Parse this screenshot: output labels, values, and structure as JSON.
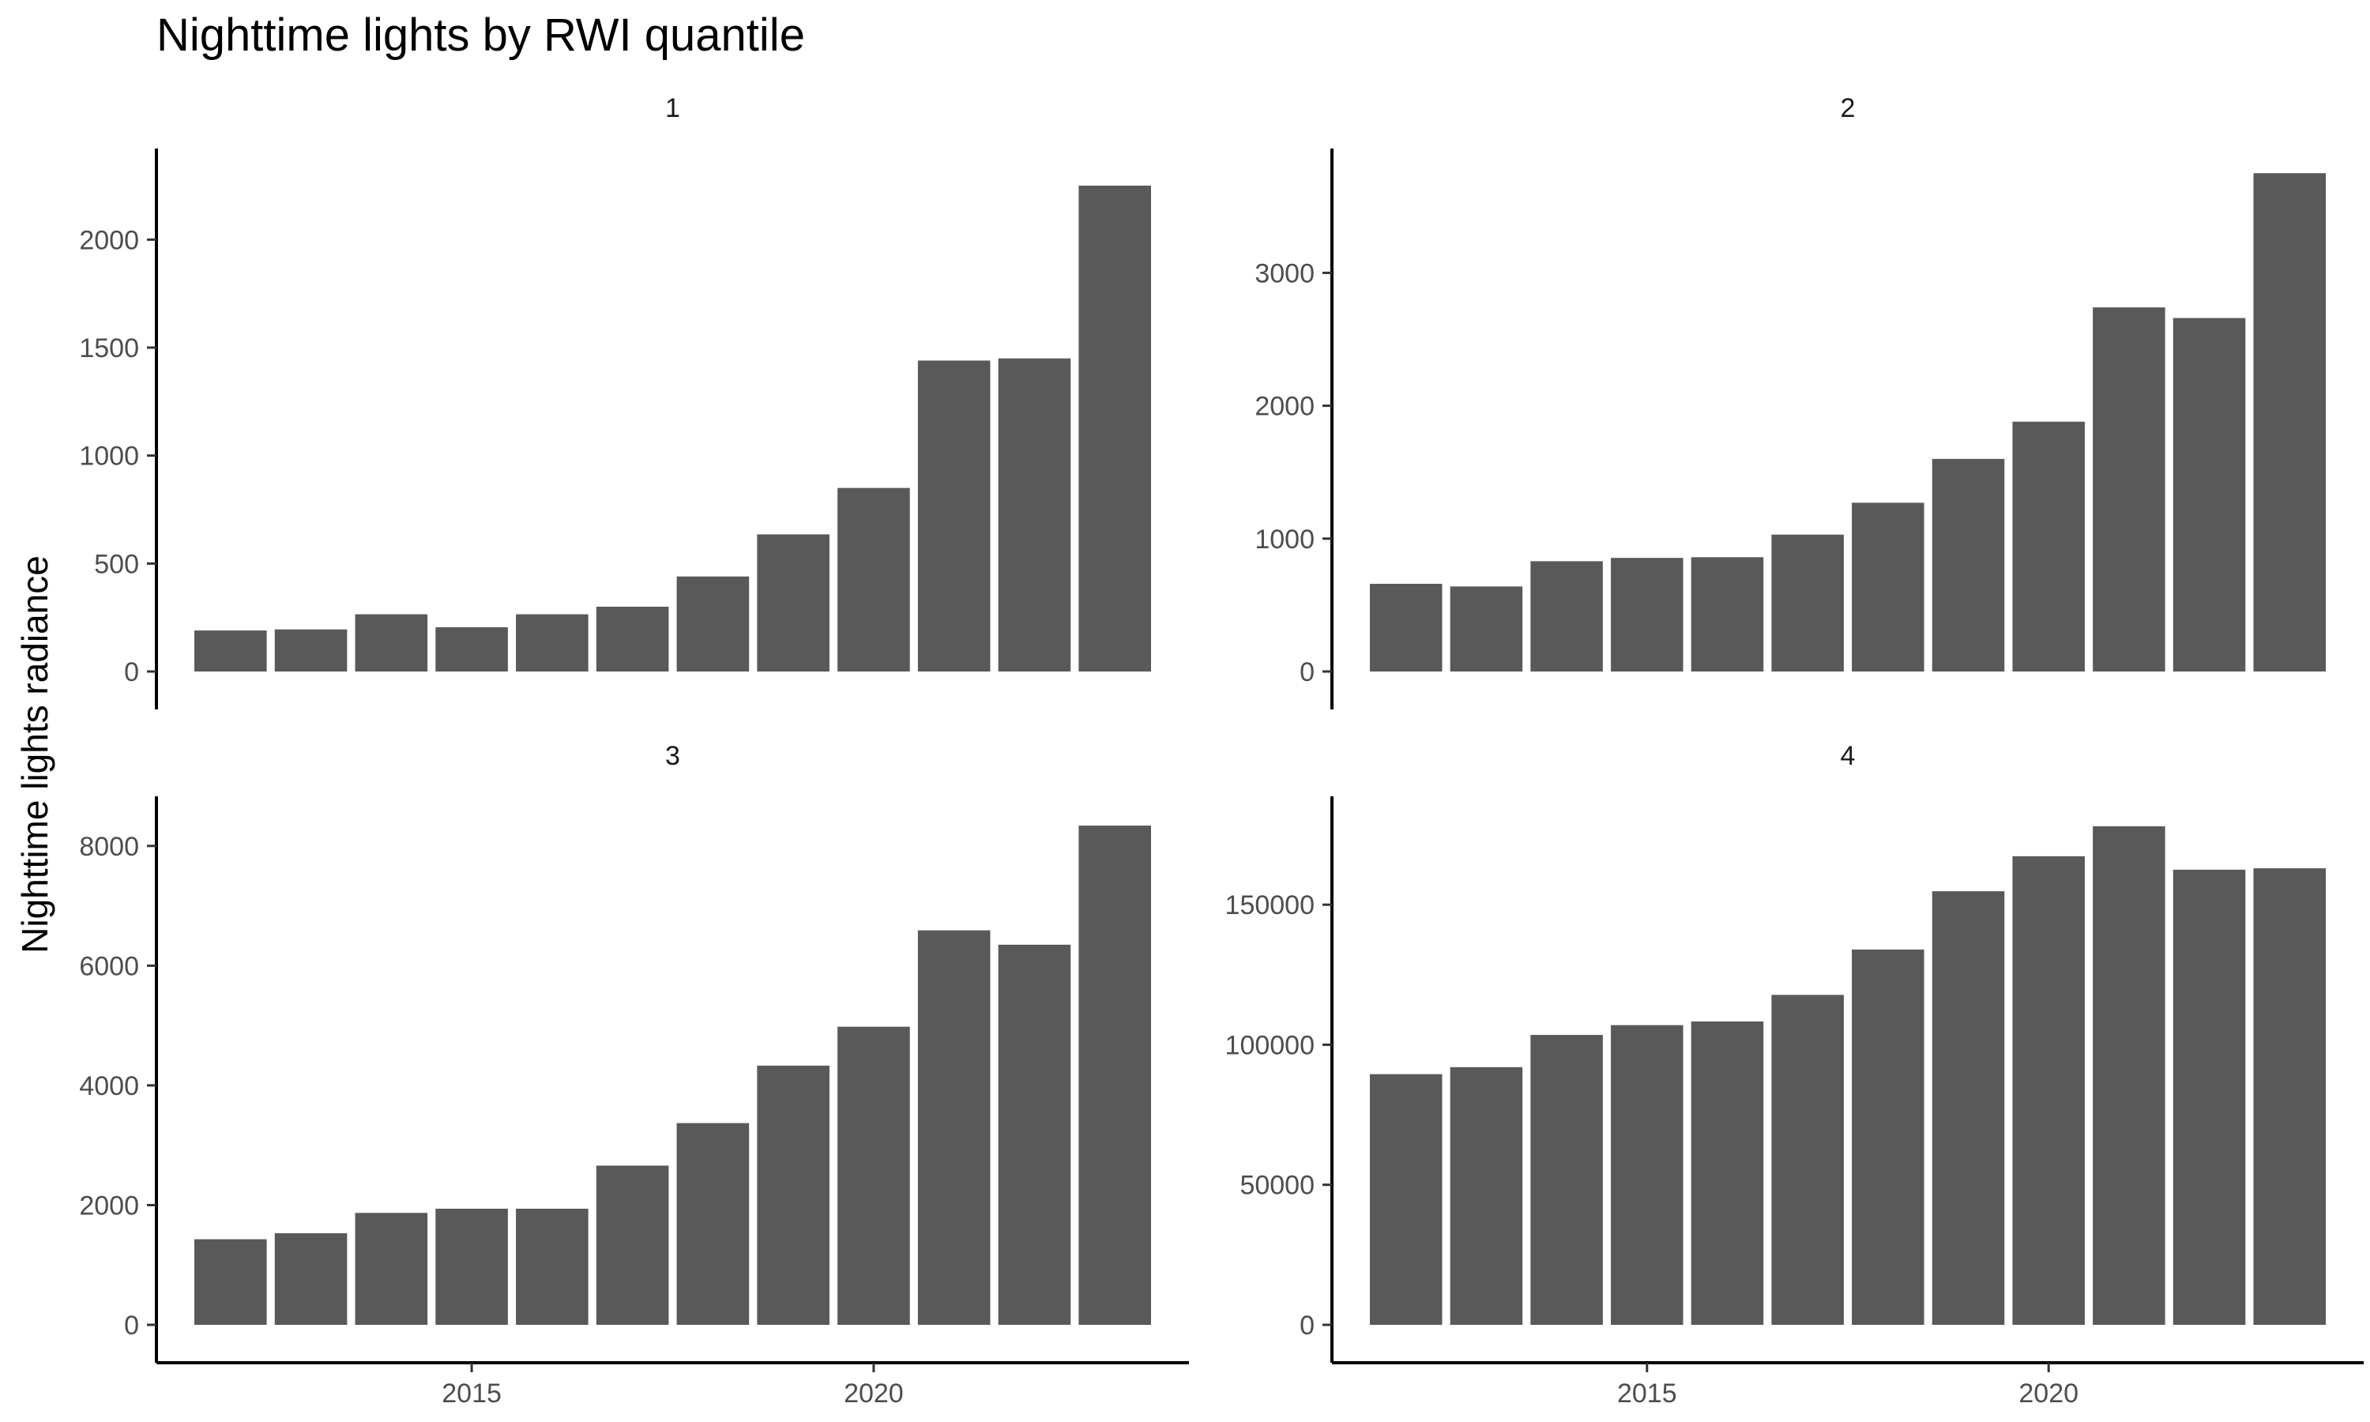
{
  "colors": {
    "bar": "#595959",
    "axis": "#000000",
    "tick_text": "#4d4d4d",
    "background": "#ffffff"
  },
  "chart_data": {
    "type": "bar",
    "layout": "facet grid 2x2",
    "title": "Nighttime lights by RWI quantile",
    "ylabel": "Nighttime lights radiance",
    "xlabel": "",
    "x": [
      2012,
      2013,
      2014,
      2015,
      2016,
      2017,
      2018,
      2019,
      2020,
      2021,
      2022,
      2023
    ],
    "x_ticks": [
      2015,
      2020
    ],
    "x_tick_labels": [
      "2015",
      "2020"
    ],
    "grid": false,
    "panels": [
      {
        "facet": "1",
        "values": [
          190,
          195,
          265,
          205,
          265,
          300,
          440,
          635,
          850,
          1440,
          1450,
          2250
        ],
        "ylim": [
          0,
          2400
        ],
        "y_ticks": [
          0,
          500,
          1000,
          1500,
          2000
        ],
        "y_tick_labels": [
          "0",
          "500",
          "1000",
          "1500",
          "2000"
        ]
      },
      {
        "facet": "2",
        "values": [
          660,
          640,
          830,
          855,
          860,
          1030,
          1270,
          1600,
          1880,
          2740,
          2660,
          3750
        ],
        "ylim": [
          0,
          3900
        ],
        "y_ticks": [
          0,
          1000,
          2000,
          3000
        ],
        "y_tick_labels": [
          "0",
          "1000",
          "2000",
          "3000"
        ]
      },
      {
        "facet": "3",
        "values": [
          1430,
          1530,
          1870,
          1940,
          1940,
          2660,
          3370,
          4330,
          4980,
          6590,
          6350,
          8340
        ],
        "ylim": [
          0,
          8750
        ],
        "y_ticks": [
          0,
          2000,
          4000,
          6000,
          8000
        ],
        "y_tick_labels": [
          "0",
          "2000",
          "4000",
          "6000",
          "8000"
        ]
      },
      {
        "facet": "4",
        "values": [
          89500,
          92000,
          103500,
          107000,
          108300,
          117800,
          134000,
          154800,
          167300,
          178000,
          162500,
          163000
        ],
        "ylim": [
          0,
          187000
        ],
        "y_ticks": [
          0,
          50000,
          100000,
          150000
        ],
        "y_tick_labels": [
          "0",
          "50000",
          "100000",
          "150000"
        ]
      }
    ]
  }
}
